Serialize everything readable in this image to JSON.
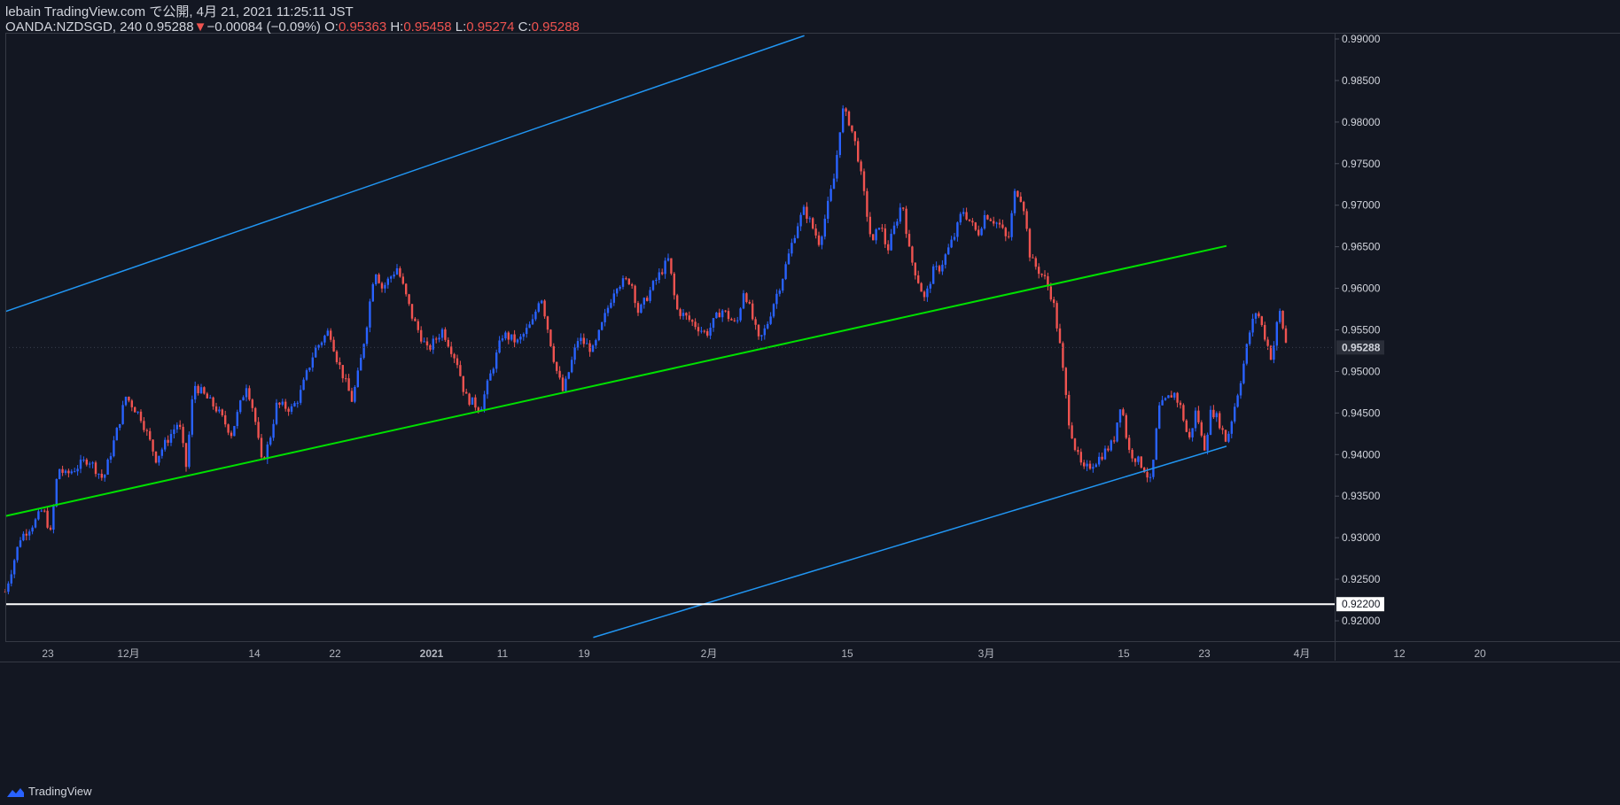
{
  "header": {
    "publish": "lebain TradingView.com で公開, 4月 21, 2021 11:25:11 JST",
    "symbol": "OANDA:NZDSGD, 240",
    "last": "0.95288",
    "arrow": "▼",
    "change": "−0.00084 (−0.09%)",
    "o_label": "O:",
    "o_value": "0.95363",
    "h_label": "H:",
    "h_value": "0.95458",
    "l_label": "L:",
    "l_value": "0.95274",
    "c_label": "C:",
    "c_value": "0.95288"
  },
  "footer": {
    "brand": "TradingView"
  },
  "colors": {
    "background": "#131722",
    "up": "#2962ff",
    "down": "#ef5350",
    "channel": "#2196f3",
    "midline": "#00e000",
    "support": "#ffffff"
  },
  "chart_data": {
    "type": "candlestick",
    "ylim": [
      0.9185,
      0.9905
    ],
    "y_ticks": [
      "0.99000",
      "0.98500",
      "0.98000",
      "0.97500",
      "0.97000",
      "0.96500",
      "0.96000",
      "0.95500",
      "0.95000",
      "0.94500",
      "0.94000",
      "0.93500",
      "0.93000",
      "0.92500",
      "0.92000"
    ],
    "x_ticks": [
      "23",
      "12月",
      "14",
      "22",
      "2021",
      "11",
      "19",
      "2月",
      "15",
      "3月",
      "15",
      "23",
      "4月",
      "12",
      "20"
    ],
    "price_label": "0.95288",
    "support_label": "0.92200",
    "support_level": 0.922,
    "trend_lines": [
      {
        "name": "upper-channel",
        "from": [
          "2020-11-19",
          0.9572
        ],
        "to": [
          "2021-03-05",
          0.9904
        ]
      },
      {
        "name": "midline",
        "from": [
          "2020-11-19",
          0.9326
        ],
        "to": [
          "2021-04-30",
          0.9651
        ]
      },
      {
        "name": "lower-channel",
        "from": [
          "2021-02-05",
          0.918
        ],
        "to": [
          "2021-04-30",
          0.941
        ]
      }
    ],
    "price_path": [
      [
        "2020-11-19",
        0.9235
      ],
      [
        "2020-11-21",
        0.93
      ],
      [
        "2020-11-23",
        0.932
      ],
      [
        "2020-11-24",
        0.9335
      ],
      [
        "2020-11-25",
        0.9305
      ],
      [
        "2020-11-26",
        0.9385
      ],
      [
        "2020-11-27",
        0.9375
      ],
      [
        "2020-11-30",
        0.9395
      ],
      [
        "2020-12-02",
        0.937
      ],
      [
        "2020-12-04",
        0.9435
      ],
      [
        "2020-12-05",
        0.947
      ],
      [
        "2020-12-07",
        0.9445
      ],
      [
        "2020-12-09",
        0.9395
      ],
      [
        "2020-12-11",
        0.9425
      ],
      [
        "2020-12-12",
        0.944
      ],
      [
        "2020-12-13",
        0.9385
      ],
      [
        "2020-12-14",
        0.9485
      ],
      [
        "2020-12-15",
        0.9475
      ],
      [
        "2020-12-17",
        0.9455
      ],
      [
        "2020-12-19",
        0.9425
      ],
      [
        "2020-12-21",
        0.9485
      ],
      [
        "2020-12-22",
        0.945
      ],
      [
        "2020-12-23",
        0.939
      ],
      [
        "2020-12-24",
        0.9415
      ],
      [
        "2020-12-25",
        0.946
      ],
      [
        "2020-12-27",
        0.9455
      ],
      [
        "2020-12-28",
        0.947
      ],
      [
        "2020-12-30",
        0.9525
      ],
      [
        "2021-01-01",
        0.955
      ],
      [
        "2021-01-02",
        0.9515
      ],
      [
        "2021-01-04",
        0.9465
      ],
      [
        "2021-01-05",
        0.9505
      ],
      [
        "2021-01-06",
        0.956
      ],
      [
        "2021-01-07",
        0.9625
      ],
      [
        "2021-01-08",
        0.96
      ],
      [
        "2021-01-10",
        0.9625
      ],
      [
        "2021-01-12",
        0.9565
      ],
      [
        "2021-01-14",
        0.9525
      ],
      [
        "2021-01-16",
        0.955
      ],
      [
        "2021-01-18",
        0.951
      ],
      [
        "2021-01-19",
        0.947
      ],
      [
        "2021-01-21",
        0.9455
      ],
      [
        "2021-01-22",
        0.9485
      ],
      [
        "2021-01-24",
        0.9545
      ],
      [
        "2021-01-26",
        0.9535
      ],
      [
        "2021-01-28",
        0.956
      ],
      [
        "2021-01-29",
        0.9595
      ],
      [
        "2021-01-31",
        0.9505
      ],
      [
        "2021-02-01",
        0.9475
      ],
      [
        "2021-02-03",
        0.954
      ],
      [
        "2021-02-05",
        0.9525
      ],
      [
        "2021-02-08",
        0.9605
      ],
      [
        "2021-02-10",
        0.961
      ],
      [
        "2021-02-11",
        0.957
      ],
      [
        "2021-02-13",
        0.9605
      ],
      [
        "2021-02-15",
        0.9635
      ],
      [
        "2021-02-16",
        0.9575
      ],
      [
        "2021-02-18",
        0.956
      ],
      [
        "2021-02-20",
        0.9545
      ],
      [
        "2021-02-22",
        0.9575
      ],
      [
        "2021-02-24",
        0.9555
      ],
      [
        "2021-02-25",
        0.96
      ],
      [
        "2021-02-27",
        0.9535
      ],
      [
        "2021-02-28",
        0.9555
      ],
      [
        "2021-03-01",
        0.9585
      ],
      [
        "2021-03-02",
        0.961
      ],
      [
        "2021-03-04",
        0.9675
      ],
      [
        "2021-03-05",
        0.9695
      ],
      [
        "2021-03-07",
        0.9655
      ],
      [
        "2021-03-09",
        0.9735
      ],
      [
        "2021-03-10",
        0.9815
      ],
      [
        "2021-03-11",
        0.98
      ],
      [
        "2021-03-12",
        0.9765
      ],
      [
        "2021-03-14",
        0.965
      ],
      [
        "2021-03-15",
        0.968
      ],
      [
        "2021-03-16",
        0.9645
      ],
      [
        "2021-03-18",
        0.9705
      ],
      [
        "2021-03-19",
        0.964
      ],
      [
        "2021-03-21",
        0.9585
      ],
      [
        "2021-03-22",
        0.962
      ],
      [
        "2021-03-23",
        0.9625
      ],
      [
        "2021-03-25",
        0.9665
      ],
      [
        "2021-03-26",
        0.9695
      ],
      [
        "2021-03-28",
        0.9665
      ],
      [
        "2021-03-29",
        0.969
      ],
      [
        "2021-03-31",
        0.9675
      ],
      [
        "2021-04-01",
        0.9655
      ],
      [
        "2021-04-02",
        0.972
      ],
      [
        "2021-04-03",
        0.9705
      ],
      [
        "2021-04-04",
        0.9635
      ],
      [
        "2021-04-06",
        0.961
      ],
      [
        "2021-04-07",
        0.9585
      ],
      [
        "2021-04-08",
        0.9525
      ],
      [
        "2021-04-09",
        0.9445
      ],
      [
        "2021-04-10",
        0.9405
      ],
      [
        "2021-04-11",
        0.938
      ],
      [
        "2021-04-13",
        0.9395
      ],
      [
        "2021-04-15",
        0.9415
      ],
      [
        "2021-04-16",
        0.9465
      ],
      [
        "2021-04-17",
        0.9405
      ],
      [
        "2021-04-19",
        0.9385
      ],
      [
        "2021-04-20",
        0.9365
      ],
      [
        "2021-04-21",
        0.9455
      ],
      [
        "2021-04-22",
        0.9465
      ],
      [
        "2021-04-23",
        0.9475
      ],
      [
        "2021-04-24",
        0.9455
      ],
      [
        "2021-04-25",
        0.9415
      ],
      [
        "2021-04-26",
        0.9455
      ],
      [
        "2021-04-27",
        0.9405
      ],
      [
        "2021-04-28",
        0.9455
      ],
      [
        "2021-04-29",
        0.944
      ],
      [
        "2021-04-30",
        0.9415
      ],
      [
        "2021-05-01",
        0.9455
      ],
      [
        "2021-05-02",
        0.9495
      ],
      [
        "2021-05-03",
        0.9545
      ],
      [
        "2021-05-04",
        0.9575
      ],
      [
        "2021-05-05",
        0.9545
      ],
      [
        "2021-05-06",
        0.9515
      ],
      [
        "2021-05-07",
        0.9575
      ],
      [
        "2021-05-08",
        0.9529
      ]
    ]
  }
}
